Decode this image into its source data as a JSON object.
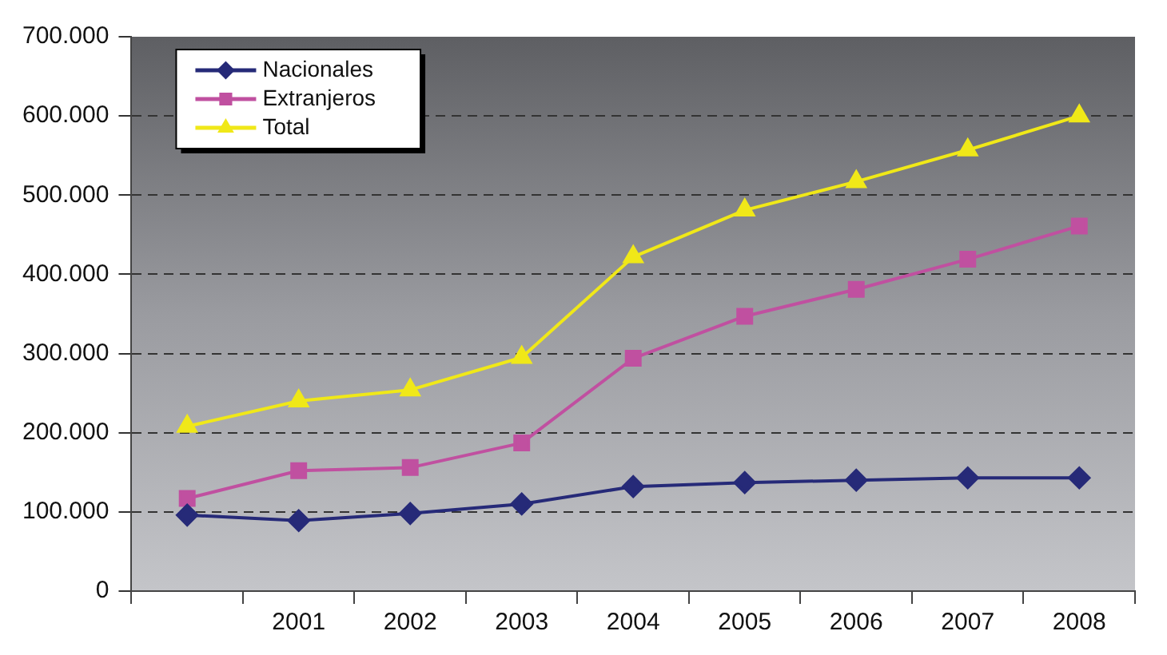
{
  "chart_data": {
    "type": "line",
    "categories": [
      null,
      "2001",
      "2002",
      "2003",
      "2004",
      "2005",
      "2006",
      "2007",
      "2008"
    ],
    "series": [
      {
        "name": "Nacionales",
        "color": "#262a78",
        "marker": "diamond",
        "values": [
          96000,
          89000,
          98000,
          110000,
          132000,
          137000,
          140000,
          143000,
          143000
        ]
      },
      {
        "name": "Extranjeros",
        "color": "#c050a0",
        "marker": "square",
        "values": [
          117000,
          152000,
          156000,
          187000,
          294000,
          347000,
          381000,
          419000,
          461000
        ]
      },
      {
        "name": "Total",
        "color": "#f0e818",
        "marker": "triangle",
        "values": [
          208000,
          240000,
          254000,
          295000,
          422000,
          481000,
          517000,
          557000,
          600000
        ]
      }
    ],
    "ylim": [
      0,
      700000
    ],
    "yticks": [
      {
        "value": 0,
        "label": "0"
      },
      {
        "value": 100000,
        "label": "100.000"
      },
      {
        "value": 200000,
        "label": "200.000"
      },
      {
        "value": 300000,
        "label": "300.000"
      },
      {
        "value": 400000,
        "label": "400.000"
      },
      {
        "value": 500000,
        "label": "500.000"
      },
      {
        "value": 600000,
        "label": "600.000"
      },
      {
        "value": 700000,
        "label": "700.000"
      }
    ],
    "grid": "y",
    "legend": "top left",
    "line_style": "solid"
  }
}
